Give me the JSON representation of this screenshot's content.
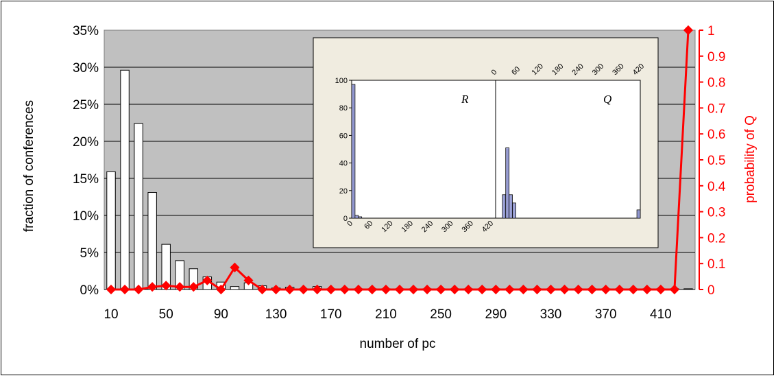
{
  "chart_data": {
    "type": "bar",
    "main": {
      "x_categories": [
        10,
        20,
        30,
        40,
        50,
        60,
        70,
        80,
        90,
        100,
        110,
        120,
        130,
        140,
        150,
        160,
        170,
        180,
        190,
        200,
        210,
        220,
        230,
        240,
        250,
        260,
        270,
        280,
        290,
        300,
        310,
        320,
        330,
        340,
        350,
        360,
        370,
        380,
        390,
        400,
        410,
        420,
        430
      ],
      "x_tick_labels": [
        "10",
        "50",
        "90",
        "130",
        "170",
        "210",
        "250",
        "290",
        "330",
        "370",
        "410"
      ],
      "bars": {
        "name": "fraction of conferences",
        "values": [
          15.9,
          29.6,
          22.4,
          13.1,
          6.1,
          3.9,
          2.8,
          1.7,
          1.0,
          0.4,
          0.9,
          0.5,
          0.2,
          0.3,
          0.1,
          0.4,
          0.1,
          0.1,
          0.1,
          0.1,
          0.1,
          0.1,
          0.1,
          0.1,
          0.1,
          0.1,
          0.1,
          0.1,
          0.1,
          0.1,
          0.1,
          0.1,
          0.1,
          0.1,
          0.1,
          0.1,
          0.1,
          0.1,
          0.1,
          0.1,
          0.1,
          0.1,
          0.1
        ],
        "color": "#ffffff"
      },
      "line": {
        "name": "probability of Q",
        "values": [
          0,
          0,
          0,
          0.01,
          0.015,
          0.01,
          0.01,
          0.035,
          0,
          0.085,
          0.035,
          0,
          0,
          0,
          0,
          0,
          0,
          0,
          0,
          0,
          0,
          0,
          0,
          0,
          0,
          0,
          0,
          0,
          0,
          0,
          0,
          0,
          0,
          0,
          0,
          0,
          0,
          0,
          0,
          0,
          0,
          0,
          1
        ],
        "color": "#ff0000"
      },
      "xlabel": "number of pc",
      "ylabel_left": "fraction of conferences",
      "ylabel_right": "probability of Q",
      "y_left_ticks": [
        "0%",
        "5%",
        "10%",
        "15%",
        "20%",
        "25%",
        "30%",
        "35%"
      ],
      "y_left_range": [
        0,
        35
      ],
      "y_right_ticks": [
        "0",
        "0.1",
        "0.2",
        "0.3",
        "0.4",
        "0.5",
        "0.6",
        "0.7",
        "0.8",
        "0.9",
        "1"
      ],
      "y_right_range": [
        0,
        1
      ],
      "plot_background": "#c0c0c0",
      "grid": true
    },
    "inset": {
      "type": "histogram",
      "x_tick_labels": [
        "0",
        "60",
        "120",
        "180",
        "240",
        "300",
        "360",
        "420"
      ],
      "y_tick_labels": [
        "0",
        "20",
        "40",
        "60",
        "80",
        "100"
      ],
      "y_range": [
        0,
        100
      ],
      "bar_color": "#b4b8e0",
      "background": "#f0ece0",
      "panels": [
        {
          "label": "R",
          "values": [
            97,
            2,
            1,
            0,
            0,
            0,
            0,
            0,
            0,
            0,
            0,
            0,
            0,
            0,
            0,
            0,
            0,
            0,
            0,
            0,
            0,
            0,
            0,
            0,
            0,
            0,
            0,
            0,
            0,
            0,
            0,
            0,
            0,
            0,
            0,
            0,
            0,
            0,
            0,
            0,
            0,
            0,
            0
          ]
        },
        {
          "label": "Q",
          "values": [
            0,
            0,
            17,
            51,
            17,
            11,
            0,
            0,
            0,
            0,
            0,
            0,
            0,
            0,
            0,
            0,
            0,
            0,
            0,
            0,
            0,
            0,
            0,
            0,
            0,
            0,
            0,
            0,
            0,
            0,
            0,
            0,
            0,
            0,
            0,
            0,
            0,
            0,
            0,
            0,
            0,
            0,
            6
          ]
        }
      ]
    }
  }
}
